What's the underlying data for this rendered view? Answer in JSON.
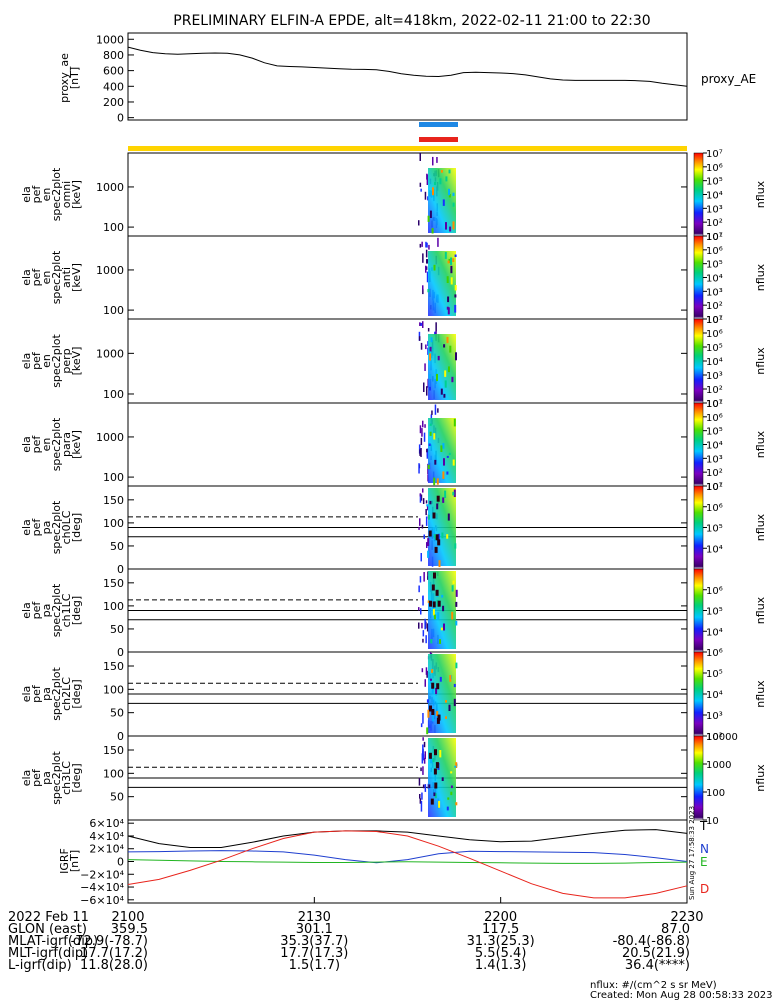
{
  "title": "PRELIMINARY ELFIN-A EPDE, alt=418km, 2022-02-11 21:00 to 22:30",
  "colors": {
    "blue_bar": "#1e88e5",
    "red_bar": "#e8241c",
    "yellow_bar": "#ffd400",
    "component_T": "#000000",
    "component_N": "#1f3fcf",
    "component_E": "#22b522",
    "component_D": "#e8241c"
  },
  "chart_data": [
    {
      "type": "line",
      "panel": "proxy_ae",
      "ylabel_lines": [
        "proxy_ae",
        "[nT]"
      ],
      "series": [
        {
          "name": "proxy_AE",
          "x": [
            0,
            2,
            4,
            6,
            8,
            10,
            12,
            14,
            16,
            18,
            20,
            22,
            24,
            26,
            28,
            30,
            32,
            34,
            36,
            38,
            40,
            42,
            44,
            46,
            48,
            50,
            52,
            54,
            56,
            58,
            60,
            62,
            64,
            66,
            68,
            70,
            72,
            74,
            76,
            78,
            80,
            82,
            84,
            86,
            88,
            90
          ],
          "y": [
            900,
            860,
            830,
            815,
            810,
            815,
            822,
            825,
            822,
            800,
            760,
            700,
            660,
            652,
            648,
            640,
            632,
            625,
            618,
            615,
            610,
            590,
            560,
            540,
            528,
            525,
            540,
            575,
            578,
            575,
            570,
            562,
            545,
            520,
            495,
            480,
            475,
            475,
            475,
            475,
            475,
            472,
            462,
            440,
            420,
            400
          ]
        }
      ],
      "yticks": [
        0,
        200,
        400,
        600,
        800,
        1000
      ],
      "yrange": [
        -30,
        1080
      ]
    },
    {
      "type": "heatmap",
      "panel": "omni",
      "ylabel_lines": [
        "ela",
        "pef",
        "en",
        "spec2plot",
        "omni",
        "[keV]"
      ],
      "yscale": "log",
      "yrange": [
        60,
        7000
      ],
      "yticks": [
        100,
        1000
      ],
      "colorbar": {
        "label": "nflux",
        "log": true,
        "range": [
          10,
          10000000
        ],
        "ticks": [
          10,
          100,
          1000,
          10000,
          100000,
          1000000,
          10000000
        ]
      }
    },
    {
      "type": "heatmap",
      "panel": "anti",
      "ylabel_lines": [
        "ela",
        "pef",
        "en",
        "spec2plot",
        "anti",
        "[keV]"
      ],
      "yscale": "log",
      "yrange": [
        60,
        7000
      ],
      "yticks": [
        100,
        1000
      ],
      "colorbar": {
        "label": "nflux",
        "log": true,
        "range": [
          10,
          10000000
        ],
        "ticks": [
          10,
          100,
          1000,
          10000,
          100000,
          1000000,
          10000000
        ]
      }
    },
    {
      "type": "heatmap",
      "panel": "perp",
      "ylabel_lines": [
        "ela",
        "pef",
        "en",
        "spec2plot",
        "perp",
        "[keV]"
      ],
      "yscale": "log",
      "yrange": [
        60,
        7000
      ],
      "yticks": [
        100,
        1000
      ],
      "colorbar": {
        "label": "nflux",
        "log": true,
        "range": [
          10,
          10000000
        ],
        "ticks": [
          10,
          100,
          1000,
          10000,
          100000,
          1000000,
          10000000
        ]
      }
    },
    {
      "type": "heatmap",
      "panel": "para",
      "ylabel_lines": [
        "ela",
        "pef",
        "en",
        "spec2plot",
        "para",
        "[keV]"
      ],
      "yscale": "log",
      "yrange": [
        60,
        7000
      ],
      "yticks": [
        100,
        1000
      ],
      "colorbar": {
        "label": "nflux",
        "log": true,
        "range": [
          10,
          10000000
        ],
        "ticks": [
          10,
          100,
          1000,
          10000,
          100000,
          1000000,
          10000000
        ]
      }
    },
    {
      "type": "heatmap",
      "panel": "ch0LC",
      "ylabel_lines": [
        "ela",
        "pef",
        "pa",
        "spec2plot",
        "ch0LC",
        "[deg]"
      ],
      "yrange": [
        0,
        180
      ],
      "yticks": [
        0,
        50,
        100,
        150
      ],
      "dashed_y": 113,
      "solid_y": [
        90,
        70
      ],
      "colorbar": {
        "label": "nflux",
        "log": true,
        "range": [
          1000,
          10000000
        ],
        "ticks": [
          10000,
          100000,
          1000000,
          10000000
        ]
      }
    },
    {
      "type": "heatmap",
      "panel": "ch1LC",
      "ylabel_lines": [
        "ela",
        "pef",
        "pa",
        "spec2plot",
        "ch1LC",
        "[deg]"
      ],
      "yrange": [
        0,
        180
      ],
      "yticks": [
        0,
        50,
        100,
        150
      ],
      "dashed_y": 113,
      "solid_y": [
        90,
        70
      ],
      "colorbar": {
        "label": "nflux",
        "log": true,
        "range": [
          1000,
          10000000
        ],
        "ticks": [
          10000,
          100000,
          1000000
        ]
      }
    },
    {
      "type": "heatmap",
      "panel": "ch2LC",
      "ylabel_lines": [
        "ela",
        "pef",
        "pa",
        "spec2plot",
        "ch2LC",
        "[deg]"
      ],
      "yrange": [
        0,
        180
      ],
      "yticks": [
        0,
        50,
        100,
        150
      ],
      "dashed_y": 113,
      "solid_y": [
        90,
        70
      ],
      "colorbar": {
        "label": "nflux",
        "log": true,
        "range": [
          100,
          1000000
        ],
        "ticks": [
          100,
          1000,
          10000,
          100000,
          1000000
        ]
      }
    },
    {
      "type": "heatmap",
      "panel": "ch3LC",
      "ylabel_lines": [
        "ela",
        "pef",
        "pa",
        "spec2plot",
        "ch3LC",
        "[deg]"
      ],
      "yrange": [
        0,
        180
      ],
      "yticks": [
        50,
        100,
        150
      ],
      "dashed_y": 113,
      "solid_y": [
        90,
        70
      ],
      "colorbar": {
        "label": "nflux",
        "log": true,
        "range": [
          10,
          10000
        ],
        "ticks": [
          10,
          100,
          1000,
          10000
        ],
        "tick_labels": [
          "10",
          "100",
          "1000",
          "10000"
        ]
      }
    },
    {
      "type": "line",
      "panel": "IGRF",
      "ylabel_lines": [
        "IGRF",
        "[nT]"
      ],
      "yrange": [
        -65000,
        65000
      ],
      "yticks": [
        -60000,
        -40000,
        -20000,
        0,
        20000,
        40000,
        60000
      ],
      "series": [
        {
          "name": "T",
          "x": [
            0,
            5,
            10,
            15,
            20,
            25,
            30,
            35,
            40,
            45,
            50,
            55,
            60,
            65,
            70,
            75,
            80,
            85,
            90
          ],
          "y": [
            40000,
            28000,
            22000,
            22000,
            30000,
            40000,
            46000,
            48000,
            48000,
            46000,
            40000,
            34000,
            31000,
            32000,
            38000,
            44000,
            49000,
            50000,
            44000
          ]
        },
        {
          "name": "N",
          "x": [
            0,
            5,
            10,
            15,
            20,
            25,
            30,
            35,
            40,
            45,
            50,
            55,
            60,
            65,
            70,
            75,
            80,
            85,
            90
          ],
          "y": [
            15000,
            15500,
            16500,
            17000,
            16500,
            15000,
            10000,
            3000,
            -2000,
            3000,
            12000,
            16000,
            15500,
            15000,
            14500,
            14000,
            11000,
            6000,
            0
          ]
        },
        {
          "name": "E",
          "x": [
            0,
            5,
            10,
            15,
            20,
            25,
            30,
            35,
            40,
            45,
            50,
            55,
            60,
            65,
            70,
            75,
            80,
            85,
            90
          ],
          "y": [
            3000,
            2000,
            1000,
            0,
            -500,
            -1000,
            -1500,
            -1500,
            -1000,
            -500,
            -1000,
            -1500,
            -2000,
            -2500,
            -3000,
            -3000,
            -2500,
            -1500,
            -1000
          ]
        },
        {
          "name": "D",
          "x": [
            0,
            5,
            10,
            15,
            20,
            25,
            30,
            35,
            40,
            45,
            50,
            55,
            60,
            65,
            70,
            75,
            80,
            85,
            90
          ],
          "y": [
            -36000,
            -28000,
            -14000,
            2000,
            20000,
            36000,
            46000,
            48000,
            47000,
            40000,
            24000,
            5000,
            -15000,
            -35000,
            -50000,
            -57000,
            -57000,
            -50000,
            -38000
          ]
        }
      ]
    }
  ],
  "time_axis": {
    "tick_labels": [
      "2100",
      "2130",
      "2200",
      "2230"
    ],
    "range_minutes": [
      0,
      90
    ]
  },
  "footer_rows": [
    {
      "label": "2022 Feb 11",
      "values": [
        "",
        "",
        "",
        ""
      ]
    },
    {
      "label": "GLON (east)",
      "values": [
        "359.5",
        "301.1",
        "117.5",
        "87.0"
      ]
    },
    {
      "label": "MLAT-igrf(dip)",
      "values": [
        "-72.9(-78.7)",
        "35.3(37.7)",
        "31.3(25.3)",
        "-80.4(-86.8)"
      ]
    },
    {
      "label": "MLT-igrf(dip)",
      "values": [
        "17.7(17.2)",
        "17.7(17.3)",
        "5.5(5.4)",
        "20.5(21.9)"
      ]
    },
    {
      "label": "L-igrf(dip)",
      "values": [
        "11.8(28.0)",
        "1.5(1.7)",
        "1.4(1.3)",
        "36.4(****)"
      ]
    }
  ],
  "footnote_units": "nflux: #/(cm^2 s sr MeV)",
  "footnote_created": "Created: Mon Aug 28 00:58:33 2023",
  "side_stamp": "Sun Aug 27 17:58:33 2023"
}
